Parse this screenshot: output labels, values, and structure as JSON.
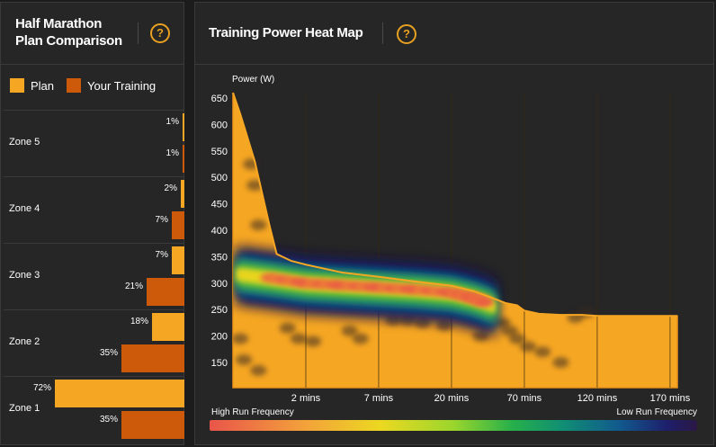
{
  "left_panel": {
    "title_line1": "Half Marathon",
    "title_line2": "Plan Comparison",
    "help_icon": "?",
    "legend": [
      {
        "label": "Plan",
        "color": "#f5a623"
      },
      {
        "label": "Your Training",
        "color": "#cc5a0a"
      }
    ],
    "zones": [
      {
        "name": "Zone 5",
        "plan": 1,
        "plan_label": "1%",
        "training": 1,
        "training_label": "1%"
      },
      {
        "name": "Zone 4",
        "plan": 2,
        "plan_label": "2%",
        "training": 7,
        "training_label": "7%"
      },
      {
        "name": "Zone 3",
        "plan": 7,
        "plan_label": "7%",
        "training": 21,
        "training_label": "21%"
      },
      {
        "name": "Zone 2",
        "plan": 18,
        "plan_label": "18%",
        "training": 35,
        "training_label": "35%"
      },
      {
        "name": "Zone 1",
        "plan": 72,
        "plan_label": "72%",
        "training": 35,
        "training_label": "35%"
      }
    ]
  },
  "right_panel": {
    "title": "Training Power Heat Map",
    "help_icon": "?",
    "gradient_high_label": "High Run Frequency",
    "gradient_low_label": "Low Run Frequency"
  },
  "colors": {
    "plan": "#f5a623",
    "training": "#cc5a0a",
    "accent": "#e8a020",
    "panel_bg": "#262626"
  },
  "chart_data": [
    {
      "type": "bar",
      "title": "Half Marathon Plan Comparison",
      "orientation": "horizontal",
      "categories": [
        "Zone 5",
        "Zone 4",
        "Zone 3",
        "Zone 2",
        "Zone 1"
      ],
      "series": [
        {
          "name": "Plan",
          "values": [
            1,
            2,
            7,
            18,
            72
          ]
        },
        {
          "name": "Your Training",
          "values": [
            1,
            7,
            21,
            35,
            35
          ]
        }
      ],
      "xlim": [
        0,
        100
      ]
    },
    {
      "type": "area",
      "title": "Training Power Heat Map",
      "ylabel": "Power (W)",
      "ylim": [
        100,
        650
      ],
      "yticks": [
        150,
        200,
        250,
        300,
        350,
        400,
        450,
        500,
        550,
        600,
        650
      ],
      "xtick_labels": [
        "2 mins",
        "7 mins",
        "20 mins",
        "70 mins",
        "120 mins",
        "170 mins"
      ],
      "xtick_positions": [
        1,
        2,
        3,
        4,
        5,
        6
      ],
      "xlim": [
        0,
        6.1
      ],
      "plan_curve": {
        "x": [
          0,
          0.1,
          0.2,
          0.3,
          0.4,
          0.5,
          0.6,
          0.8,
          1.0,
          1.5,
          2.0,
          2.5,
          3.0,
          3.3,
          3.5,
          3.75,
          3.9,
          4.0,
          4.2,
          4.5,
          4.8,
          5.0,
          5.5,
          6.1
        ],
        "y": [
          660,
          620,
          575,
          530,
          470,
          410,
          355,
          342,
          335,
          320,
          312,
          303,
          295,
          285,
          275,
          262,
          258,
          248,
          242,
          240,
          240,
          238,
          238,
          238
        ]
      },
      "heat_core": {
        "x": [
          0.05,
          0.5,
          1.0,
          1.5,
          2.0,
          2.5,
          3.0,
          3.3,
          3.5,
          3.6
        ],
        "y": [
          318,
          310,
          300,
          296,
          292,
          288,
          282,
          272,
          262,
          255
        ]
      },
      "scatter_runs": [
        {
          "x": 0.1,
          "y": 195
        },
        {
          "x": 0.35,
          "y": 135
        },
        {
          "x": 0.15,
          "y": 155
        },
        {
          "x": 0.9,
          "y": 195
        },
        {
          "x": 1.1,
          "y": 190
        },
        {
          "x": 0.75,
          "y": 215
        },
        {
          "x": 1.6,
          "y": 210
        },
        {
          "x": 1.75,
          "y": 195
        },
        {
          "x": 2.2,
          "y": 230
        },
        {
          "x": 2.4,
          "y": 230
        },
        {
          "x": 2.6,
          "y": 225
        },
        {
          "x": 2.9,
          "y": 220
        },
        {
          "x": 3.4,
          "y": 200
        },
        {
          "x": 3.7,
          "y": 225
        },
        {
          "x": 3.8,
          "y": 210
        },
        {
          "x": 3.9,
          "y": 195
        },
        {
          "x": 4.05,
          "y": 180
        },
        {
          "x": 4.25,
          "y": 170
        },
        {
          "x": 4.5,
          "y": 150
        },
        {
          "x": 4.7,
          "y": 235
        },
        {
          "x": 4.85,
          "y": 245
        },
        {
          "x": 0.3,
          "y": 485
        },
        {
          "x": 0.25,
          "y": 525
        },
        {
          "x": 0.35,
          "y": 410
        }
      ]
    }
  ]
}
